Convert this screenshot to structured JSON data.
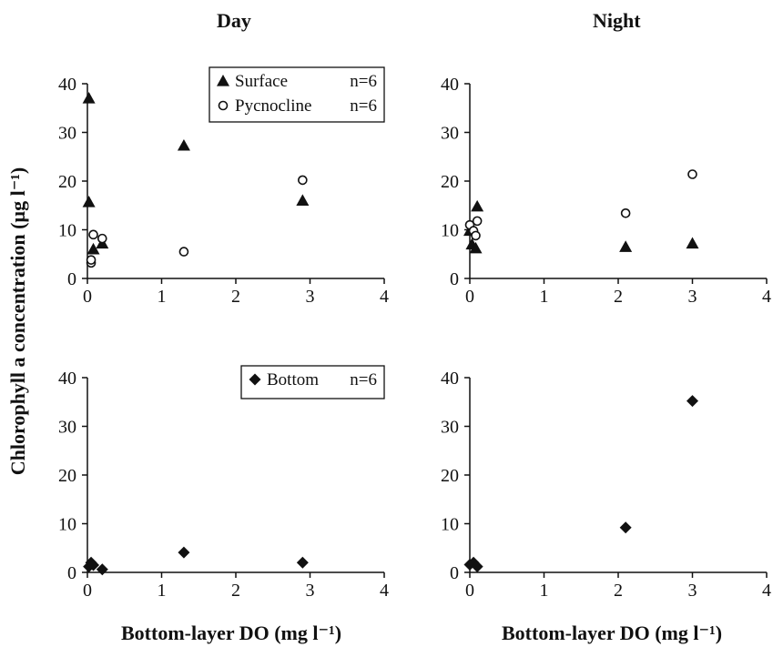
{
  "column_titles": {
    "left": "Day",
    "right": "Night"
  },
  "y_axis_label": "Chlorophyll a concentration (µg l⁻¹)",
  "x_axis_label": "Bottom-layer DO (mg l⁻¹)",
  "chart_data": [
    {
      "id": "day-top",
      "type": "scatter",
      "xlim": [
        0,
        4
      ],
      "ylim": [
        0,
        40
      ],
      "xticks": [
        0,
        1,
        2,
        3,
        4
      ],
      "yticks": [
        0,
        10,
        20,
        30,
        40
      ],
      "legend": {
        "placement": "top-right",
        "entries": [
          {
            "marker": "triangle",
            "label": "Surface",
            "n": "n=6"
          },
          {
            "marker": "circle",
            "label": "Pycnocline",
            "n": "n=6"
          }
        ]
      },
      "series": [
        {
          "name": "Surface",
          "marker": "triangle",
          "points": [
            [
              0.02,
              37
            ],
            [
              0.02,
              15.7
            ],
            [
              0.08,
              6
            ],
            [
              0.2,
              7.2
            ],
            [
              1.3,
              27.3
            ],
            [
              2.9,
              16
            ]
          ]
        },
        {
          "name": "Pycnocline",
          "marker": "circle",
          "points": [
            [
              0.05,
              3.2
            ],
            [
              0.05,
              3.8
            ],
            [
              0.08,
              9
            ],
            [
              0.2,
              8.2
            ],
            [
              1.3,
              5.5
            ],
            [
              2.9,
              20.2
            ]
          ]
        }
      ]
    },
    {
      "id": "night-top",
      "type": "scatter",
      "xlim": [
        0,
        4
      ],
      "ylim": [
        0,
        40
      ],
      "xticks": [
        0,
        1,
        2,
        3,
        4
      ],
      "yticks": [
        0,
        10,
        20,
        30,
        40
      ],
      "series": [
        {
          "name": "Surface",
          "marker": "triangle",
          "points": [
            [
              0.0,
              9.8
            ],
            [
              0.03,
              7
            ],
            [
              0.08,
              6.2
            ],
            [
              0.1,
              14.8
            ],
            [
              2.1,
              6.5
            ],
            [
              3.0,
              7.2
            ]
          ]
        },
        {
          "name": "Pycnocline",
          "marker": "circle",
          "points": [
            [
              0.0,
              11
            ],
            [
              0.05,
              9.8
            ],
            [
              0.08,
              8.8
            ],
            [
              0.1,
              11.8
            ],
            [
              2.1,
              13.4
            ],
            [
              3.0,
              21.4
            ]
          ]
        }
      ]
    },
    {
      "id": "day-bottom",
      "type": "scatter",
      "xlim": [
        0,
        4
      ],
      "ylim": [
        0,
        40
      ],
      "xticks": [
        0,
        1,
        2,
        3,
        4
      ],
      "yticks": [
        0,
        10,
        20,
        30,
        40
      ],
      "legend": {
        "placement": "top-right",
        "entries": [
          {
            "marker": "diamond",
            "label": "Bottom",
            "n": "n=6"
          }
        ]
      },
      "series": [
        {
          "name": "Bottom",
          "marker": "diamond",
          "points": [
            [
              0.02,
              1.2
            ],
            [
              0.05,
              2
            ],
            [
              0.08,
              1.5
            ],
            [
              0.2,
              0.6
            ],
            [
              1.3,
              4.1
            ],
            [
              2.9,
              2
            ]
          ]
        }
      ]
    },
    {
      "id": "night-bottom",
      "type": "scatter",
      "xlim": [
        0,
        4
      ],
      "ylim": [
        0,
        40
      ],
      "xticks": [
        0,
        1,
        2,
        3,
        4
      ],
      "yticks": [
        0,
        10,
        20,
        30,
        40
      ],
      "series": [
        {
          "name": "Bottom",
          "marker": "diamond",
          "points": [
            [
              0.0,
              1.6
            ],
            [
              0.05,
              2
            ],
            [
              0.1,
              1.2
            ],
            [
              2.1,
              9.2
            ],
            [
              3.0,
              35.2
            ]
          ]
        }
      ]
    }
  ]
}
